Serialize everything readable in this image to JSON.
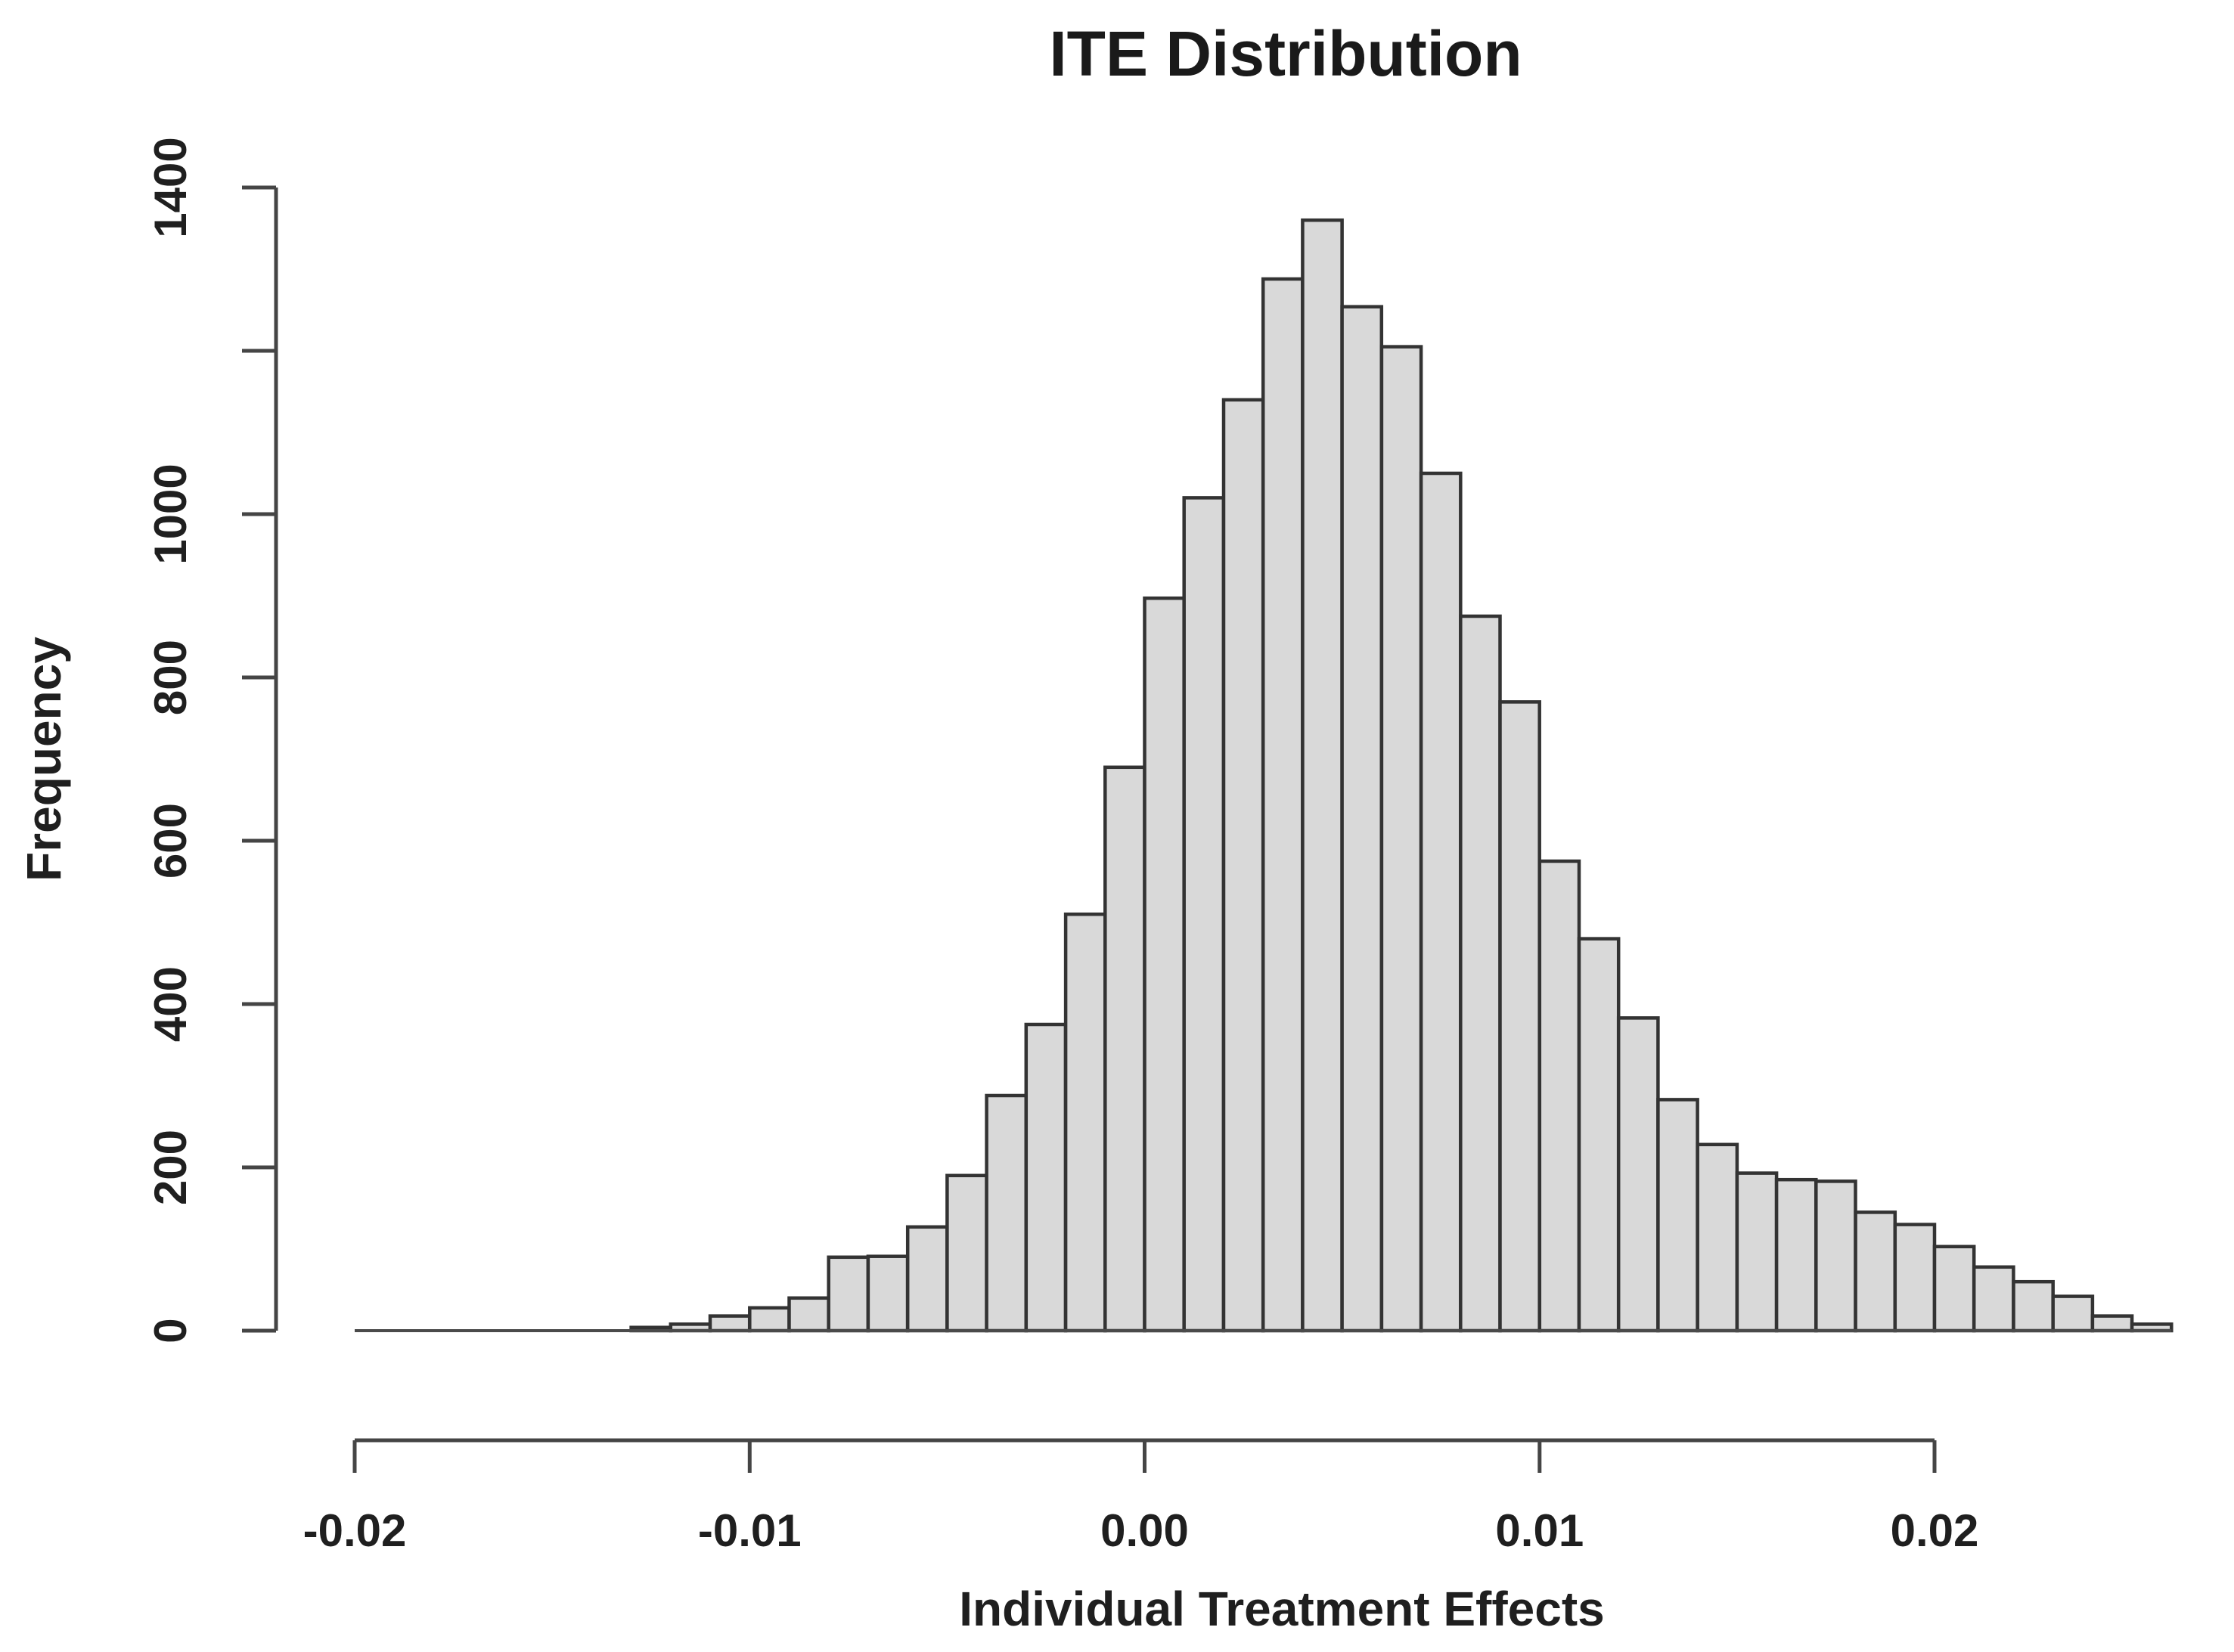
{
  "title": "ITE Distribution",
  "chart_data": {
    "type": "bar",
    "subtype": "histogram",
    "title": "ITE Distribution",
    "xlabel": "Individual Treatment Effects",
    "ylabel": "Frequency",
    "bin_start": -0.013,
    "bin_width": 0.001,
    "counts": [
      4,
      8,
      18,
      28,
      40,
      90,
      91,
      127,
      190,
      288,
      375,
      510,
      690,
      897,
      1020,
      1140,
      1288,
      1360,
      1254,
      1205,
      1050,
      875,
      770,
      575,
      480,
      383,
      283,
      228,
      193,
      185,
      183,
      145,
      130,
      103,
      78,
      60,
      42,
      18,
      8
    ],
    "xlim": [
      -0.02,
      0.026
    ],
    "ylim": [
      0,
      1400
    ],
    "grid": "off",
    "legend": "none",
    "y_ticks": [
      {
        "value": 0,
        "label": "0"
      },
      {
        "value": 200,
        "label": "200"
      },
      {
        "value": 400,
        "label": "400"
      },
      {
        "value": 600,
        "label": "600"
      },
      {
        "value": 800,
        "label": "800"
      },
      {
        "value": 1000,
        "label": "1000"
      },
      {
        "value": 1200,
        "label": ""
      },
      {
        "value": 1400,
        "label": "1400"
      }
    ],
    "x_ticks": [
      {
        "value": -0.02,
        "label": "-0.02"
      },
      {
        "value": -0.01,
        "label": "-0.01"
      },
      {
        "value": 0.0,
        "label": "0.00"
      },
      {
        "value": 0.01,
        "label": "0.01"
      },
      {
        "value": 0.02,
        "label": "0.02"
      }
    ],
    "colors": {
      "bar_fill": "#d9d9d9",
      "bar_stroke": "#333333",
      "axis": "#454545",
      "baseline": "#4a4a4a",
      "text": "#1a1a1a",
      "background": "#ffffff"
    }
  }
}
